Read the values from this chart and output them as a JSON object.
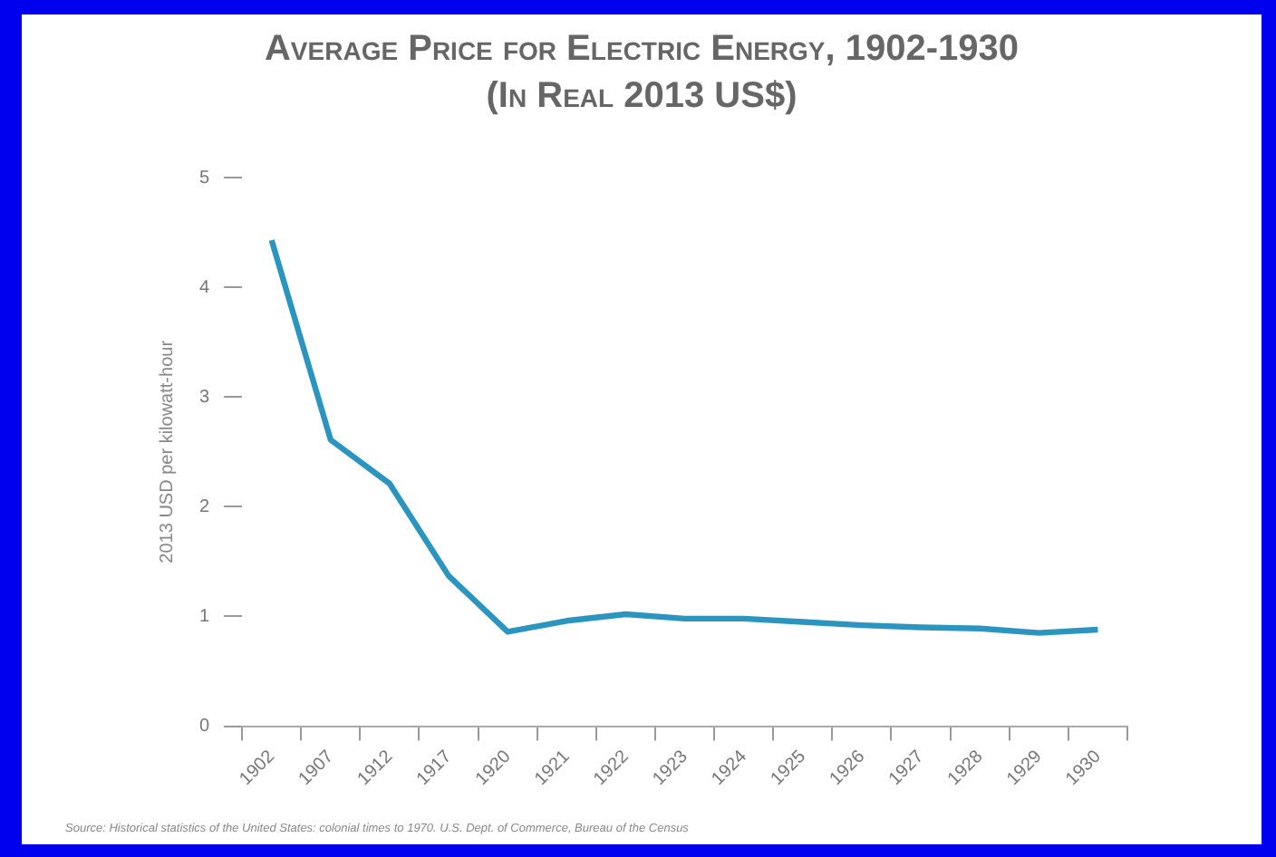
{
  "chart_data": {
    "type": "line",
    "title": "Average Price for Electric Energy, 1902-1930",
    "subtitle": "(In Real 2013 US$)",
    "ylabel": "2013 USD per kilowatt-hour",
    "categories": [
      "1902",
      "1907",
      "1912",
      "1917",
      "1920",
      "1921",
      "1922",
      "1923",
      "1924",
      "1925",
      "1926",
      "1927",
      "1928",
      "1929",
      "1930"
    ],
    "series": [
      {
        "color": "#2b95c0",
        "values": [
          4.43,
          2.61,
          2.21,
          1.37,
          0.86,
          0.96,
          1.02,
          0.98,
          0.98,
          0.95,
          0.92,
          0.9,
          0.89,
          0.85,
          0.88
        ]
      }
    ],
    "ylim": [
      0,
      5
    ],
    "yticks": [
      0,
      1,
      2,
      3,
      4,
      5
    ],
    "grid": false,
    "legend": false,
    "marker": "none",
    "line_style": "solid",
    "annotations": [
      "Source: Historical statistics of the United States: colonial times to 1970. U.S. Dept. of Commerce, Bureau of the Census"
    ]
  }
}
